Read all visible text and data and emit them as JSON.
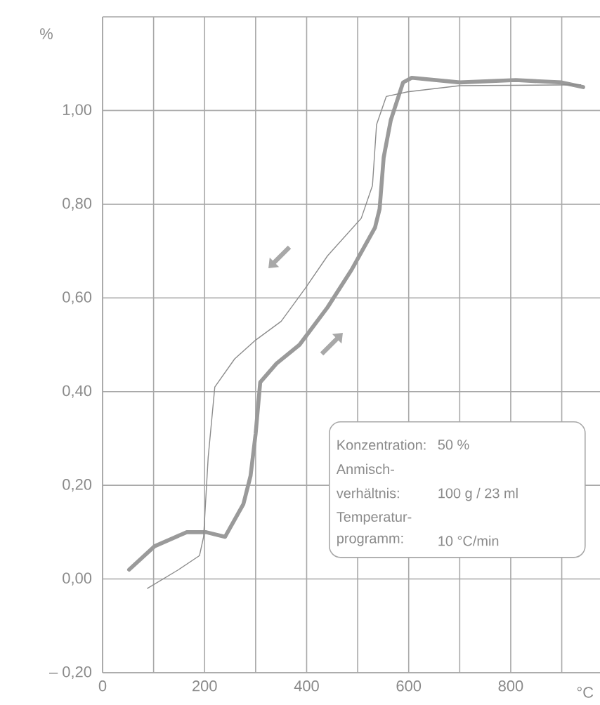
{
  "chart_data": {
    "type": "line",
    "xlabel": "°C",
    "ylabel": "%",
    "xlim": [
      0,
      975
    ],
    "ylim": [
      -0.2,
      1.2
    ],
    "xticks": [
      0,
      {
        "value": 100,
        "label": null
      },
      200,
      {
        "value": 300,
        "label": null
      },
      400,
      {
        "value": 500,
        "label": null
      },
      600,
      {
        "value": 700,
        "label": null
      },
      800,
      {
        "value": 900,
        "label": null
      }
    ],
    "yticks": [
      {
        "value": -0.2,
        "label": "– 0,20"
      },
      {
        "value": 0,
        "label": "0,00"
      },
      {
        "value": 0.2,
        "label": "0,20"
      },
      {
        "value": 0.4,
        "label": "0,40"
      },
      {
        "value": 0.6,
        "label": "0,60"
      },
      {
        "value": 0.8,
        "label": "0,80"
      },
      {
        "value": 1.0,
        "label": "1,00"
      },
      {
        "value": 1.2,
        "label": null
      }
    ],
    "grid": true,
    "series": [
      {
        "color": "#9a9a9a",
        "x": [
          52,
          102,
          165,
          203,
          240,
          276,
          290,
          300,
          309,
          341,
          386,
          441,
          488,
          534,
          543,
          551,
          565,
          589,
          606,
          700,
          810,
          900,
          942
        ],
        "values": [
          0.02,
          0.07,
          0.1,
          0.1,
          0.09,
          0.16,
          0.22,
          0.31,
          0.42,
          0.46,
          0.5,
          0.58,
          0.66,
          0.75,
          0.79,
          0.9,
          0.98,
          1.06,
          1.07,
          1.06,
          1.065,
          1.06,
          1.05
        ]
      },
      {
        "color": "#8c8c8c",
        "x": [
          88,
          149,
          190,
          198,
          207,
          220,
          259,
          300,
          350,
          397,
          441,
          507,
          529,
          537,
          556,
          598,
          700,
          937
        ],
        "values": [
          -0.02,
          0.02,
          0.05,
          0.09,
          0.26,
          0.41,
          0.47,
          0.51,
          0.55,
          0.62,
          0.69,
          0.77,
          0.84,
          0.97,
          1.03,
          1.04,
          1.053,
          1.055
        ]
      }
    ],
    "annotations": [
      "Konzentration:",
      "50 %",
      "Anmisch-",
      "verhältnis:",
      "100 g / 23 ml",
      "Temperatur-",
      "programm:",
      "10 °C/min"
    ]
  }
}
